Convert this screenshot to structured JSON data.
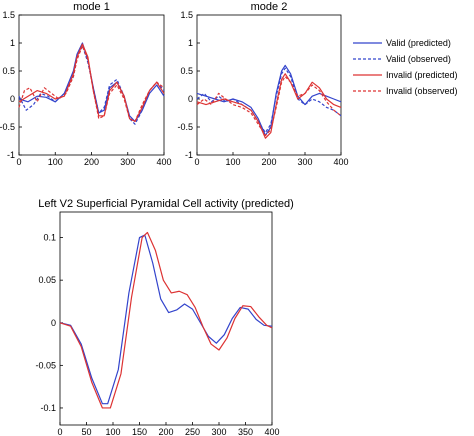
{
  "chart_data": [
    {
      "type": "line",
      "title": "mode 1",
      "xlim": [
        0,
        400
      ],
      "ylim": [
        -1,
        1.5
      ],
      "xticks": [
        0,
        100,
        200,
        300,
        400
      ],
      "yticks": [
        1.5,
        1,
        0.5,
        0,
        -0.5,
        -1
      ],
      "grid": false,
      "series": [
        {
          "name": "Valid (predicted)",
          "color": "#3344cc",
          "style": "solid",
          "x": [
            0,
            25,
            50,
            75,
            100,
            125,
            150,
            160,
            175,
            190,
            205,
            220,
            235,
            250,
            270,
            290,
            305,
            320,
            340,
            360,
            380,
            400
          ],
          "y": [
            0,
            -0.05,
            0.05,
            0.03,
            -0.05,
            0.1,
            0.5,
            0.8,
            1.0,
            0.7,
            0.2,
            -0.25,
            -0.2,
            0.2,
            0.3,
            0.05,
            -0.3,
            -0.4,
            -0.2,
            0.1,
            0.25,
            0.05
          ]
        },
        {
          "name": "Valid (observed)",
          "color": "#3344cc",
          "style": "dashed",
          "x": [
            0,
            20,
            40,
            60,
            80,
            100,
            125,
            150,
            160,
            175,
            190,
            205,
            220,
            235,
            250,
            270,
            290,
            305,
            320,
            340,
            360,
            380,
            400
          ],
          "y": [
            0.05,
            -0.2,
            -0.1,
            0.1,
            0.05,
            -0.05,
            0.1,
            0.4,
            0.75,
            0.95,
            0.65,
            0.2,
            -0.25,
            -0.15,
            0.25,
            0.35,
            0.05,
            -0.35,
            -0.45,
            -0.2,
            0.15,
            0.3,
            0.15
          ]
        },
        {
          "name": "Invalid (predicted)",
          "color": "#dd3333",
          "style": "solid",
          "x": [
            0,
            25,
            50,
            75,
            100,
            125,
            150,
            160,
            175,
            190,
            205,
            220,
            235,
            250,
            270,
            290,
            305,
            320,
            340,
            360,
            380,
            400
          ],
          "y": [
            -0.05,
            0.05,
            0.15,
            0.1,
            0.0,
            0.05,
            0.45,
            0.75,
            0.98,
            0.75,
            0.15,
            -0.3,
            -0.3,
            0.15,
            0.3,
            0.05,
            -0.35,
            -0.4,
            -0.15,
            0.15,
            0.3,
            0.1
          ]
        },
        {
          "name": "Invalid (observed)",
          "color": "#dd3333",
          "style": "dashed",
          "x": [
            0,
            15,
            30,
            50,
            70,
            90,
            110,
            130,
            150,
            160,
            175,
            190,
            205,
            220,
            235,
            250,
            270,
            290,
            305,
            320,
            340,
            360,
            380,
            400
          ],
          "y": [
            -0.15,
            0.15,
            0.2,
            -0.05,
            0.2,
            0.1,
            0.0,
            0.1,
            0.4,
            0.7,
            0.95,
            0.7,
            0.15,
            -0.35,
            -0.3,
            0.1,
            0.25,
            0.0,
            -0.35,
            -0.4,
            -0.1,
            0.15,
            0.3,
            0.2
          ]
        }
      ]
    },
    {
      "type": "line",
      "title": "mode 2",
      "xlim": [
        0,
        400
      ],
      "ylim": [
        -1,
        1.5
      ],
      "xticks": [
        0,
        100,
        200,
        300,
        400
      ],
      "yticks": [
        1.5,
        1,
        0.5,
        0,
        -0.5,
        -1
      ],
      "grid": false,
      "series": [
        {
          "name": "Valid (predicted)",
          "color": "#3344cc",
          "style": "solid",
          "x": [
            0,
            25,
            50,
            75,
            100,
            125,
            150,
            170,
            190,
            205,
            220,
            235,
            245,
            260,
            280,
            300,
            320,
            340,
            360,
            380,
            400
          ],
          "y": [
            0.1,
            0.05,
            0.0,
            -0.05,
            0.0,
            -0.05,
            -0.15,
            -0.35,
            -0.65,
            -0.5,
            0.1,
            0.5,
            0.6,
            0.45,
            0.05,
            -0.1,
            0.05,
            0.1,
            0.05,
            0.0,
            -0.05
          ]
        },
        {
          "name": "Valid (observed)",
          "color": "#3344cc",
          "style": "dashed",
          "x": [
            0,
            20,
            40,
            60,
            80,
            100,
            125,
            150,
            170,
            190,
            205,
            220,
            235,
            245,
            260,
            280,
            300,
            320,
            340,
            360,
            380,
            400
          ],
          "y": [
            0.0,
            0.1,
            -0.05,
            0.05,
            -0.05,
            0.0,
            -0.1,
            -0.2,
            -0.4,
            -0.6,
            -0.45,
            0.05,
            0.45,
            0.55,
            0.4,
            0.0,
            -0.1,
            0.0,
            -0.05,
            -0.15,
            -0.2,
            -0.3
          ]
        },
        {
          "name": "Invalid (predicted)",
          "color": "#dd3333",
          "style": "solid",
          "x": [
            0,
            25,
            50,
            75,
            100,
            125,
            150,
            170,
            190,
            205,
            220,
            235,
            245,
            260,
            280,
            300,
            320,
            340,
            360,
            380,
            400
          ],
          "y": [
            -0.05,
            -0.1,
            -0.05,
            0.0,
            -0.05,
            -0.1,
            -0.2,
            -0.4,
            -0.7,
            -0.6,
            -0.1,
            0.35,
            0.45,
            0.3,
            0.0,
            0.1,
            0.3,
            0.2,
            0.0,
            -0.1,
            -0.15
          ]
        },
        {
          "name": "Invalid (observed)",
          "color": "#dd3333",
          "style": "dashed",
          "x": [
            0,
            20,
            40,
            60,
            80,
            100,
            125,
            150,
            170,
            190,
            205,
            220,
            235,
            245,
            260,
            280,
            300,
            320,
            340,
            360,
            380,
            400
          ],
          "y": [
            -0.1,
            0.0,
            -0.1,
            0.1,
            0.0,
            -0.1,
            -0.15,
            -0.25,
            -0.45,
            -0.65,
            -0.55,
            -0.15,
            0.3,
            0.4,
            0.3,
            0.05,
            0.1,
            0.25,
            0.15,
            -0.05,
            -0.2,
            -0.3
          ]
        }
      ]
    },
    {
      "type": "line",
      "title": "Left V2 Superficial Pyramidal Cell activity (predicted)",
      "xlim": [
        0,
        400
      ],
      "ylim": [
        -0.12,
        0.13
      ],
      "xticks": [
        0,
        50,
        100,
        150,
        200,
        250,
        300,
        350,
        400
      ],
      "yticks": [
        0.1,
        0.05,
        0,
        -0.05,
        -0.1
      ],
      "grid": false,
      "series": [
        {
          "name": "Valid",
          "color": "#3344cc",
          "style": "solid",
          "x": [
            0,
            20,
            40,
            60,
            80,
            90,
            110,
            130,
            150,
            160,
            175,
            190,
            205,
            220,
            235,
            250,
            265,
            280,
            295,
            310,
            325,
            340,
            355,
            370,
            385,
            400
          ],
          "y": [
            0,
            -0.003,
            -0.025,
            -0.065,
            -0.095,
            -0.095,
            -0.055,
            0.035,
            0.1,
            0.103,
            0.07,
            0.028,
            0.012,
            0.015,
            0.022,
            0.016,
            0.0,
            -0.016,
            -0.024,
            -0.014,
            0.005,
            0.018,
            0.016,
            0.004,
            -0.003,
            -0.004
          ]
        },
        {
          "name": "Invalid",
          "color": "#dd3333",
          "style": "solid",
          "x": [
            0,
            20,
            40,
            60,
            80,
            95,
            115,
            135,
            155,
            165,
            180,
            195,
            210,
            225,
            240,
            255,
            270,
            285,
            300,
            315,
            330,
            345,
            360,
            375,
            390,
            400
          ],
          "y": [
            0,
            -0.004,
            -0.028,
            -0.07,
            -0.1,
            -0.1,
            -0.06,
            0.03,
            0.1,
            0.106,
            0.085,
            0.05,
            0.035,
            0.037,
            0.033,
            0.018,
            -0.005,
            -0.025,
            -0.032,
            -0.018,
            0.005,
            0.02,
            0.019,
            0.007,
            -0.003,
            -0.006
          ]
        }
      ]
    }
  ],
  "legend": {
    "placement": "right",
    "entries": [
      {
        "label": "Valid (predicted)",
        "color": "#3344cc",
        "style": "solid"
      },
      {
        "label": "Valid (observed)",
        "color": "#3344cc",
        "style": "dashed"
      },
      {
        "label": "Invalid (predicted)",
        "color": "#dd3333",
        "style": "solid"
      },
      {
        "label": "Invalid (observed)",
        "color": "#dd3333",
        "style": "dashed"
      }
    ]
  }
}
